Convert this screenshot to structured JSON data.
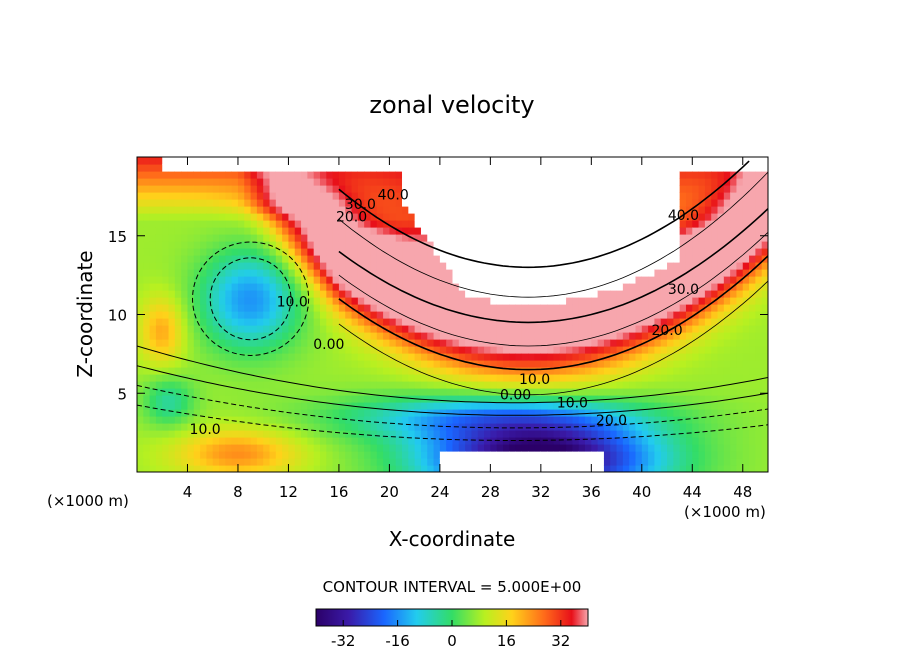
{
  "chart_data": {
    "type": "heatmap",
    "title": "zonal velocity",
    "xlabel": "X-coordinate",
    "ylabel": "Z-coordinate",
    "x_unit_note": "(×1000 m)",
    "z_unit_note": "(×1000 m)",
    "xlim": [
      0,
      50
    ],
    "ylim": [
      0,
      20
    ],
    "x_ticks": [
      "4",
      "8",
      "12",
      "16",
      "20",
      "24",
      "28",
      "32",
      "36",
      "40",
      "44",
      "48"
    ],
    "y_ticks": [
      "5",
      "10",
      "15"
    ],
    "contour_interval_text": "CONTOUR INTERVAL = 5.000E+00",
    "contour_labels": [
      {
        "text": "40.0",
        "x": 20.3,
        "z": 17.3
      },
      {
        "text": "30.0",
        "x": 17.7,
        "z": 16.7
      },
      {
        "text": "20.0",
        "x": 17.0,
        "z": 15.9
      },
      {
        "text": "10.0",
        "x": 12.3,
        "z": 10.5
      },
      {
        "text": "0.00",
        "x": 15.2,
        "z": 7.8
      },
      {
        "text": "40.0",
        "x": 43.3,
        "z": 16.0
      },
      {
        "text": "30.0",
        "x": 43.3,
        "z": 11.3
      },
      {
        "text": "20.0",
        "x": 42.0,
        "z": 8.7
      },
      {
        "text": "10.0",
        "x": 31.5,
        "z": 5.6
      },
      {
        "text": "0.00",
        "x": 30.0,
        "z": 4.6
      },
      {
        "text": "10.0",
        "x": 34.5,
        "z": 4.1
      },
      {
        "text": "20.0",
        "x": 37.6,
        "z": 3.0
      },
      {
        "text": "10.0",
        "x": 5.4,
        "z": 2.4
      }
    ],
    "colorbar": {
      "min": -40,
      "max": 40,
      "tick_labels": [
        "-32",
        "-16",
        "0",
        "16",
        "32"
      ],
      "tick_values": [
        -32,
        -16,
        0,
        16,
        32
      ]
    },
    "field_features": [
      {
        "desc": "jet core max",
        "x": 36,
        "z": 12,
        "value": 40
      },
      {
        "desc": "lower jet min",
        "x": 32,
        "z": 0.5,
        "value": -40
      },
      {
        "desc": "local minimum",
        "x": 9,
        "z": 11,
        "value": -18
      },
      {
        "desc": "local maximum",
        "x": 8,
        "z": 1,
        "value": 22
      }
    ]
  }
}
